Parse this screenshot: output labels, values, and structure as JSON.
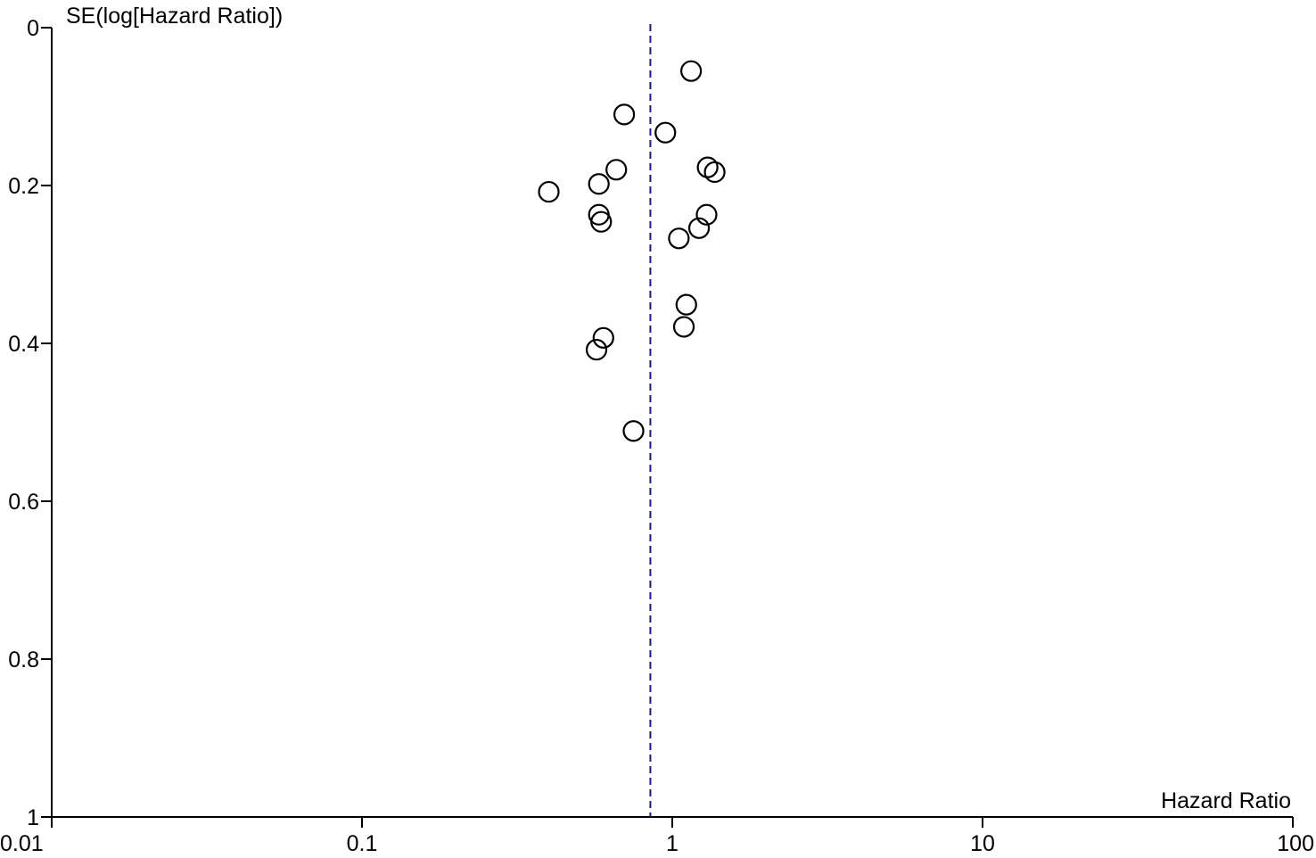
{
  "chart_data": {
    "type": "scatter",
    "title": "",
    "xlabel": "Hazard Ratio",
    "ylabel": "SE(log[Hazard Ratio])",
    "x_scale": "log",
    "xlim": [
      0.01,
      100
    ],
    "ylim": [
      0,
      1
    ],
    "y_inverted": true,
    "x_ticks": [
      "0.01",
      "0.1",
      "1",
      "10",
      "100"
    ],
    "y_ticks": [
      "0",
      "0.2",
      "0.4",
      "0.6",
      "0.8",
      "1"
    ],
    "grid": false,
    "reference_line": {
      "x": 0.85,
      "style": "dashed",
      "color": "#1a1a8c"
    },
    "points": [
      {
        "x": 1.15,
        "y": 0.055
      },
      {
        "x": 0.7,
        "y": 0.11
      },
      {
        "x": 0.95,
        "y": 0.133
      },
      {
        "x": 0.66,
        "y": 0.18
      },
      {
        "x": 1.3,
        "y": 0.177
      },
      {
        "x": 1.37,
        "y": 0.183
      },
      {
        "x": 0.58,
        "y": 0.198
      },
      {
        "x": 0.4,
        "y": 0.208
      },
      {
        "x": 0.58,
        "y": 0.237
      },
      {
        "x": 0.59,
        "y": 0.246
      },
      {
        "x": 1.29,
        "y": 0.237
      },
      {
        "x": 1.22,
        "y": 0.254
      },
      {
        "x": 1.05,
        "y": 0.267
      },
      {
        "x": 1.11,
        "y": 0.351
      },
      {
        "x": 1.09,
        "y": 0.379
      },
      {
        "x": 0.6,
        "y": 0.393
      },
      {
        "x": 0.57,
        "y": 0.408
      },
      {
        "x": 0.75,
        "y": 0.511
      }
    ]
  }
}
